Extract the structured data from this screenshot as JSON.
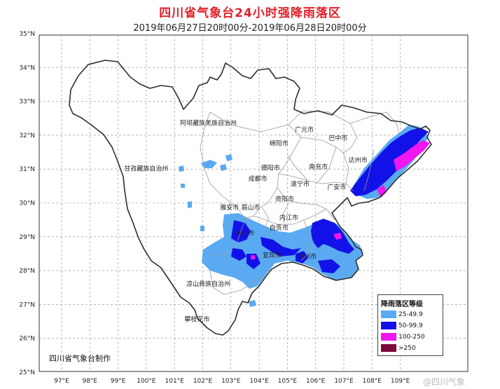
{
  "title": "四川省气象台24小时强降雨落区",
  "subtitle": "2019年06月27日20时00分-2019年06月28日20时00分",
  "axes": {
    "lat_labels": [
      "25°N",
      "26°N",
      "27°N",
      "28°N",
      "29°N",
      "30°N",
      "31°N",
      "32°N",
      "33°N",
      "34°N",
      "35°N"
    ],
    "lon_labels": [
      "97°E",
      "98°E",
      "99°E",
      "100°E",
      "101°E",
      "102°E",
      "103°E",
      "104°E",
      "105°E",
      "106°E",
      "107°E",
      "108°E",
      "109°E"
    ]
  },
  "places": [
    {
      "name": "阿坝藏族羌族自治州",
      "lon": 102.2,
      "lat": 32.3
    },
    {
      "name": "甘孜藏族自治州",
      "lon": 100.0,
      "lat": 30.95
    },
    {
      "name": "广元市",
      "lon": 105.6,
      "lat": 32.1
    },
    {
      "name": "巴中市",
      "lon": 106.8,
      "lat": 31.85
    },
    {
      "name": "绵阳市",
      "lon": 104.7,
      "lat": 31.7
    },
    {
      "name": "达州市",
      "lon": 107.5,
      "lat": 31.2
    },
    {
      "name": "德阳市",
      "lon": 104.4,
      "lat": 30.97
    },
    {
      "name": "南充市",
      "lon": 106.1,
      "lat": 31.0
    },
    {
      "name": "成都市",
      "lon": 103.95,
      "lat": 30.65
    },
    {
      "name": "遂宁市",
      "lon": 105.45,
      "lat": 30.5
    },
    {
      "name": "广安市",
      "lon": 106.75,
      "lat": 30.4
    },
    {
      "name": "资阳市",
      "lon": 104.9,
      "lat": 30.05
    },
    {
      "name": "雅安市",
      "lon": 102.95,
      "lat": 29.8
    },
    {
      "name": "眉山市",
      "lon": 103.7,
      "lat": 29.8
    },
    {
      "name": "内江市",
      "lon": 105.05,
      "lat": 29.5
    },
    {
      "name": "乐山市",
      "lon": 103.5,
      "lat": 29.05
    },
    {
      "name": "自贡市",
      "lon": 104.7,
      "lat": 29.2
    },
    {
      "name": "宜宾市",
      "lon": 104.45,
      "lat": 28.4
    },
    {
      "name": "泸州市",
      "lon": 105.7,
      "lat": 28.35
    },
    {
      "name": "凉山彝族自治州",
      "lon": 102.2,
      "lat": 27.55
    },
    {
      "name": "攀枝花市",
      "lon": 101.8,
      "lat": 26.5
    }
  ],
  "legend": {
    "title": "降雨落区等级",
    "items": [
      {
        "label": "25-49.9",
        "color": "#5aaaf2"
      },
      {
        "label": "50-99.9",
        "color": "#1212e8"
      },
      {
        "label": "100-250",
        "color": "#f016f0"
      },
      {
        "label": ">250",
        "color": "#7a0a3a"
      }
    ]
  },
  "credit": "四川省气象台制作",
  "watermark": "@四川气象"
}
